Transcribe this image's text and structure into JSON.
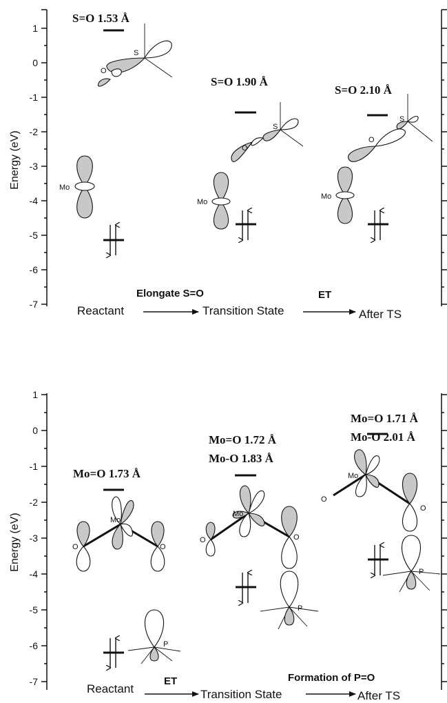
{
  "panels": [
    {
      "y_axis_label": "Energy (eV)",
      "y_ticks": [
        "1",
        "0",
        "-1",
        "-2",
        "-3",
        "-4",
        "-5",
        "-6",
        "-7"
      ],
      "stages": [
        "Reactant",
        "Transition State",
        "After TS"
      ],
      "steps": [
        "Elongate S=O",
        "ET"
      ],
      "geometries": [
        "S=O 1.53 Å",
        "S=O   1.90 Å",
        "S=O 2.10 Å"
      ],
      "atoms": {
        "s": "S",
        "o": "O",
        "mo": "Mo"
      }
    },
    {
      "y_axis_label": "Energy (eV)",
      "y_ticks": [
        "1",
        "0",
        "-1",
        "-2",
        "-3",
        "-4",
        "-5",
        "-6",
        "-7"
      ],
      "stages": [
        "Reactant",
        "Transition State",
        "After TS"
      ],
      "steps": [
        "ET",
        "Formation of P=O"
      ],
      "geometries": {
        "reactant": [
          "Mo=O 1.73 Å"
        ],
        "ts": [
          "Mo=O 1.72 Å",
          "Mo-O 1.83 Å"
        ],
        "after": [
          "Mo=O 1.71 Å",
          "Mo-O 2.01 Å"
        ]
      },
      "atoms": {
        "mo": "Mo",
        "o": "O",
        "p": "P"
      }
    }
  ]
}
